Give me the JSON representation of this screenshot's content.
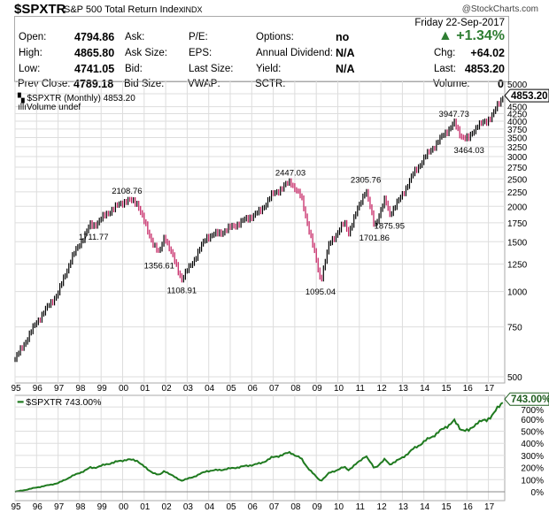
{
  "header": {
    "symbol": "$SPXTR",
    "name": "S&P 500 Total Return Index",
    "exchange": "INDX",
    "brand": "@StockCharts.com"
  },
  "info": {
    "date": "Friday  22-Sep-2017",
    "open_label": "Open:",
    "open": "4794.86",
    "high_label": "High:",
    "high": "4865.80",
    "low_label": "Low:",
    "low": "4741.05",
    "prev_label": "Prev Close:",
    "prev": "4789.18",
    "ask_label": "Ask:",
    "asksize_label": "Ask Size:",
    "bid_label": "Bid:",
    "bidsize_label": "Bid Size:",
    "pe_label": "P/E:",
    "eps_label": "EPS:",
    "lastsize_label": "Last Size:",
    "vwap_label": "VWAP:",
    "options_label": "Options:",
    "options": "no",
    "div_label": "Annual Dividend:",
    "div": "N/A",
    "yield_label": "Yield:",
    "yield": "N/A",
    "sctr_label": "SCTR:",
    "pct_change": "+1.34%",
    "chg_label": "Chg:",
    "chg": "+64.02",
    "last_label": "Last:",
    "last": "4853.20",
    "volume_label": "Volume:",
    "volume": "0",
    "up_color": "#2e7d32"
  },
  "chart_data": [
    {
      "type": "line",
      "title": "$SPXTR (Monthly) 4853.20",
      "legend2": "Volume undef",
      "last_value_label": "4853.20",
      "scale": "log",
      "ylim": [
        480,
        5000
      ],
      "yticks": [
        500,
        750,
        1000,
        1250,
        1500,
        1750,
        2000,
        2250,
        2500,
        2750,
        3000,
        3250,
        3500,
        3750,
        4000,
        4250,
        4500,
        5000
      ],
      "xticks": [
        "95",
        "96",
        "97",
        "98",
        "99",
        "00",
        "01",
        "02",
        "03",
        "04",
        "05",
        "06",
        "07",
        "08",
        "09",
        "10",
        "11",
        "12",
        "13",
        "14",
        "15",
        "16",
        "17"
      ],
      "anchors": [
        [
          1995.0,
          575.5
        ],
        [
          1996.0,
          780
        ],
        [
          1997.0,
          990
        ],
        [
          1997.6,
          1300
        ],
        [
          1998.5,
          1720
        ],
        [
          1998.65,
          1711.77
        ],
        [
          1999.5,
          1950
        ],
        [
          2000.2,
          2108.76
        ],
        [
          2000.7,
          2050
        ],
        [
          2001.2,
          1600
        ],
        [
          2001.7,
          1356.61
        ],
        [
          2001.95,
          1580
        ],
        [
          2002.55,
          1200
        ],
        [
          2002.75,
          1108.91
        ],
        [
          2003.2,
          1250
        ],
        [
          2003.9,
          1560
        ],
        [
          2004.6,
          1620
        ],
        [
          2005.5,
          1760
        ],
        [
          2006.4,
          1920
        ],
        [
          2006.9,
          2180
        ],
        [
          2007.8,
          2447.03
        ],
        [
          2008.3,
          2150
        ],
        [
          2008.8,
          1500
        ],
        [
          2009.2,
          1095.04
        ],
        [
          2009.6,
          1470
        ],
        [
          2010.3,
          1750
        ],
        [
          2010.5,
          1620
        ],
        [
          2011.3,
          2305.76
        ],
        [
          2011.7,
          1701.86
        ],
        [
          2012.2,
          2120
        ],
        [
          2012.4,
          1875.95
        ],
        [
          2012.9,
          2130
        ],
        [
          2013.5,
          2600
        ],
        [
          2014.0,
          2950
        ],
        [
          2014.6,
          3350
        ],
        [
          2015.4,
          3947.73
        ],
        [
          2015.7,
          3560
        ],
        [
          2016.1,
          3464.03
        ],
        [
          2016.5,
          3900
        ],
        [
          2016.9,
          3950
        ],
        [
          2017.7,
          4853.2
        ]
      ],
      "annotations": [
        {
          "label": "2108.76",
          "value": 2108.76,
          "year": 2000.2
        },
        {
          "label": "1711.77",
          "value": 1711.77,
          "year": 1998.65
        },
        {
          "label": "1356.61",
          "value": 1356.61,
          "year": 2001.7
        },
        {
          "label": "1108.91",
          "value": 1108.91,
          "year": 2002.75
        },
        {
          "label": "2447.03",
          "value": 2447.03,
          "year": 2007.8
        },
        {
          "label": "1095.04",
          "value": 1095.04,
          "year": 2009.2
        },
        {
          "label": "2305.76",
          "value": 2305.76,
          "year": 2011.3
        },
        {
          "label": "1701.86",
          "value": 1701.86,
          "year": 2011.7
        },
        {
          "label": "1875.95",
          "value": 1875.95,
          "year": 2012.4
        },
        {
          "label": "3947.73",
          "value": 3947.73,
          "year": 2015.4
        },
        {
          "label": "3464.03",
          "value": 3464.03,
          "year": 2016.1
        }
      ]
    },
    {
      "type": "line",
      "title": "$SPXTR 743.00%",
      "last_value_label": "743.00%",
      "ylim": [
        -30,
        760
      ],
      "yticks": [
        "0%",
        "100%",
        "200%",
        "300%",
        "400%",
        "500%",
        "600%",
        "700%"
      ],
      "color": "#1f7a1f"
    }
  ]
}
